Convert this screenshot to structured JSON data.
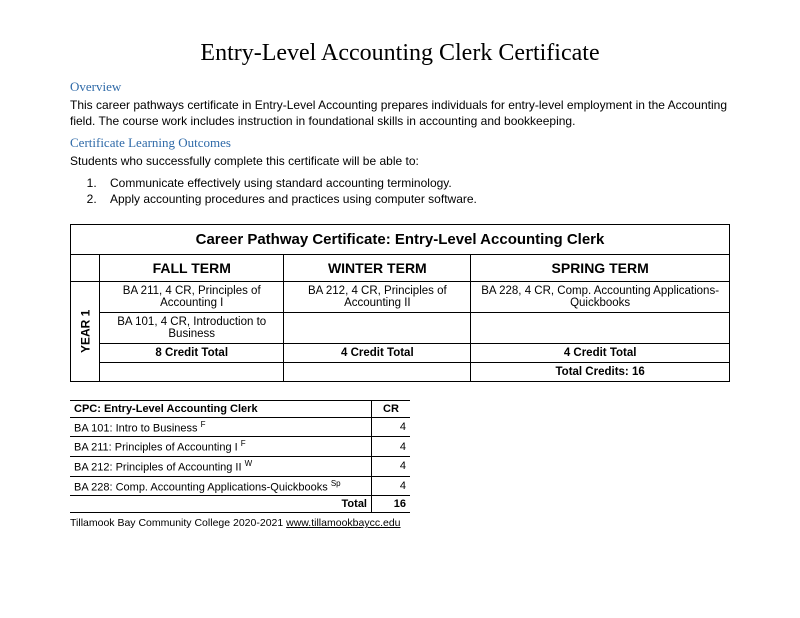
{
  "title": "Entry-Level Accounting Clerk Certificate",
  "overview": {
    "heading": "Overview",
    "text": "This career pathways certificate in Entry-Level Accounting prepares individuals for entry-level employment in the Accounting field. The course work includes instruction in foundational skills in accounting and bookkeeping."
  },
  "outcomes": {
    "heading": "Certificate Learning Outcomes",
    "intro": "Students who successfully complete this certificate will be able to:",
    "list": [
      "Communicate effectively using standard accounting terminology.",
      "Apply accounting procedures and practices using computer software."
    ]
  },
  "pathway": {
    "table_title": "Career Pathway Certificate: Entry-Level Accounting Clerk",
    "terms": [
      "FALL TERM",
      "WINTER TERM",
      "SPRING TERM"
    ],
    "year_label": "YEAR 1",
    "rows": [
      [
        "BA 211, 4 CR, Principles of Accounting I",
        "BA 212, 4 CR, Principles of Accounting II",
        "BA 228, 4 CR, Comp. Accounting Applications-Quickbooks"
      ],
      [
        "BA 101, 4 CR, Introduction to Business",
        "",
        ""
      ]
    ],
    "credit_totals": [
      "8 Credit Total",
      "4 Credit Total",
      "4 Credit Total"
    ],
    "grand_total": "Total Credits: 16"
  },
  "summary": {
    "header": "CPC: Entry-Level Accounting Clerk",
    "cr_label": "CR",
    "courses": [
      {
        "name": "BA 101: Intro to Business",
        "sup": "F",
        "cr": "4"
      },
      {
        "name": "BA 211: Principles of Accounting I",
        "sup": "F",
        "cr": "4"
      },
      {
        "name": "BA 212: Principles of Accounting II",
        "sup": "W",
        "cr": "4"
      },
      {
        "name": "BA 228: Comp. Accounting Applications-Quickbooks",
        "sup": "Sp",
        "cr": "4"
      }
    ],
    "total_label": "Total",
    "total_value": "16"
  },
  "footer": {
    "text": "Tillamook Bay Community College 2020-2021 ",
    "link": "www.tillamookbaycc.edu"
  }
}
